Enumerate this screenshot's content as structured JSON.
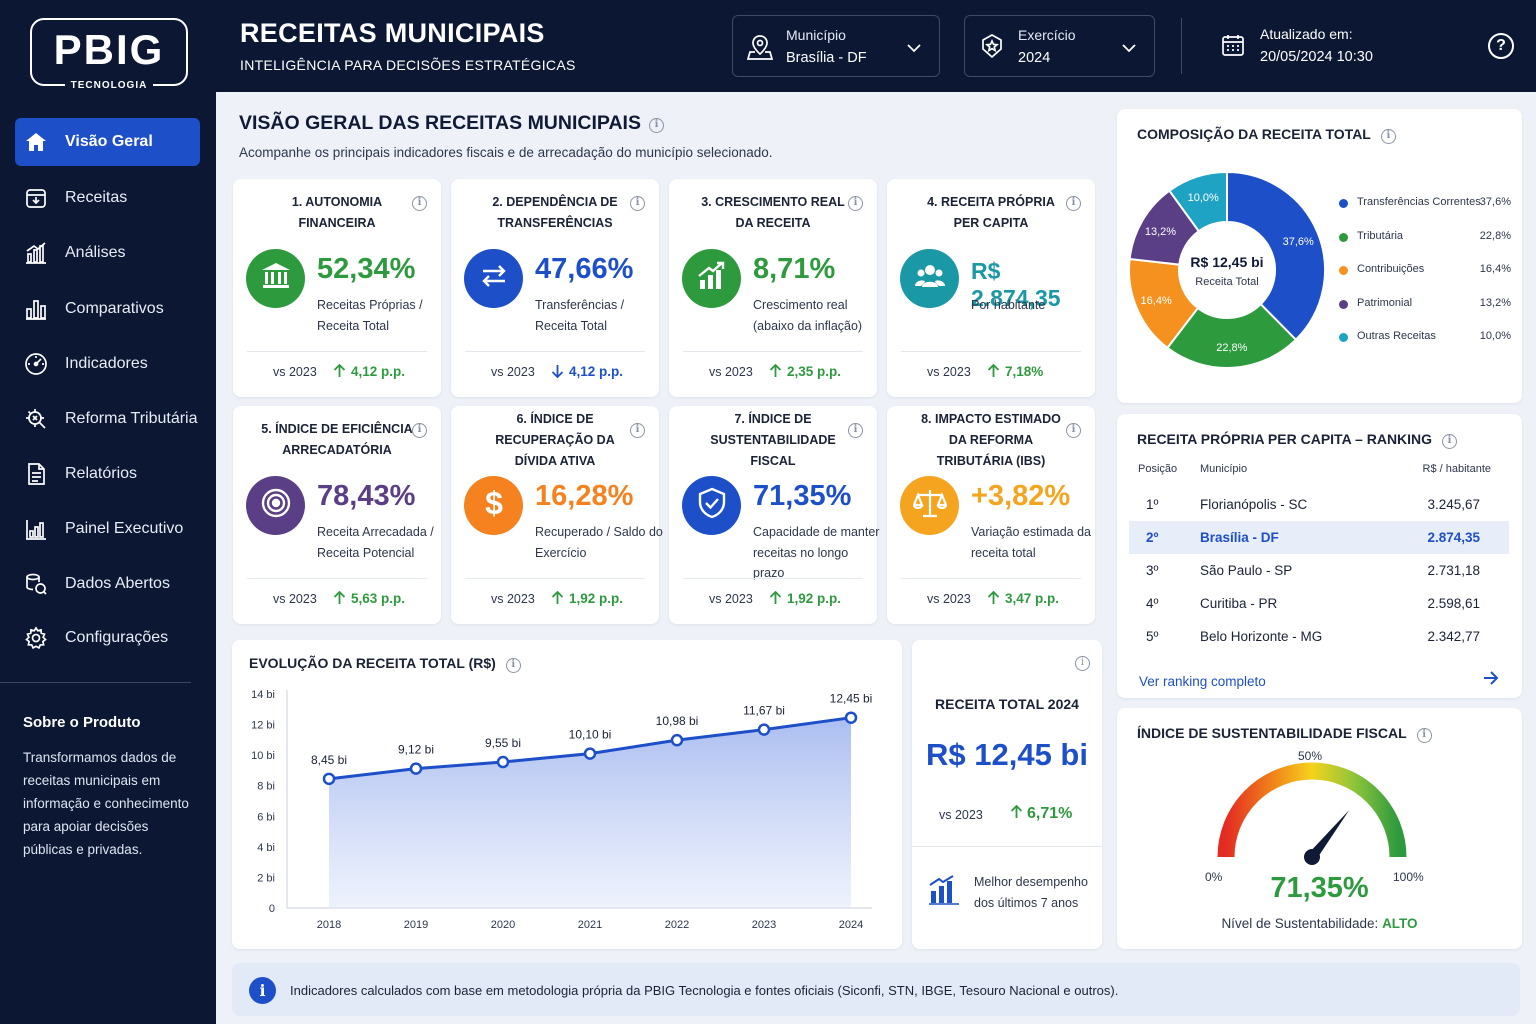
{
  "brand": {
    "name": "PBIG",
    "sub": "TECNOLOGIA"
  },
  "sidebar": {
    "items": [
      {
        "label": "Visão Geral",
        "icon": "home-icon",
        "active": true
      },
      {
        "label": "Receitas",
        "icon": "receipt-icon"
      },
      {
        "label": "Análises",
        "icon": "bar-chart-icon"
      },
      {
        "label": "Comparativos",
        "icon": "compare-bars-icon"
      },
      {
        "label": "Indicadores",
        "icon": "gauge-icon"
      },
      {
        "label": "Reforma Tributária",
        "icon": "tax-reform-icon"
      },
      {
        "label": "Relatórios",
        "icon": "document-icon"
      },
      {
        "label": "Painel Executivo",
        "icon": "dashboard-icon"
      },
      {
        "label": "Dados Abertos",
        "icon": "open-data-icon"
      },
      {
        "label": "Configurações",
        "icon": "gear-icon"
      }
    ],
    "about_title": "Sobre o Produto",
    "about_text": "Transformamos dados de receitas municipais em informação e conhecimento para apoiar decisões públicas e privadas."
  },
  "header": {
    "title": "RECEITAS MUNICIPAIS",
    "subtitle": "INTELIGÊNCIA PARA DECISÕES ESTRATÉGICAS",
    "municipio": {
      "label": "Município",
      "value": "Brasília - DF"
    },
    "exercicio": {
      "label": "Exercício",
      "value": "2024"
    },
    "updated": {
      "label": "Atualizado em:",
      "value": "20/05/2024 10:30"
    },
    "help": "?"
  },
  "overview": {
    "title": "VISÃO GERAL DAS RECEITAS MUNICIPAIS",
    "subtitle": "Acompanhe os principais indicadores fiscais e de arrecadação do município selecionado."
  },
  "kpis": [
    {
      "title": "1. AUTONOMIA FINANCEIRA",
      "value": "52,34%",
      "desc": "Receitas Próprias / Receita Total",
      "vs": "vs 2023",
      "delta": "4,12 p.p.",
      "dir": "up",
      "color": "#2e9a3e",
      "icon": "bank-icon"
    },
    {
      "title": "2. DEPENDÊNCIA DE TRANSFERÊNCIAS",
      "value": "47,66%",
      "desc": "Transferências / Receita Total",
      "vs": "vs 2023",
      "delta": "4,12 p.p.",
      "dir": "down",
      "color": "#1d4fc9",
      "icon": "transfer-arrows-icon"
    },
    {
      "title": "3. CRESCIMENTO REAL DA RECEITA",
      "value": "8,71%",
      "desc": "Crescimento real (abaixo da inflação)",
      "vs": "vs 2023",
      "delta": "2,35 p.p.",
      "dir": "up",
      "color": "#2e9a3e",
      "icon": "growth-chart-icon"
    },
    {
      "title": "4. RECEITA PRÓPRIA PER CAPITA",
      "value": "R$ 2.874,35",
      "desc": "Por habitante",
      "vs": "vs 2023",
      "delta": "7,18%",
      "dir": "up",
      "color": "#1a98a6",
      "icon": "people-icon"
    },
    {
      "title": "5. ÍNDICE DE EFICIÊNCIA ARRECADATÓRIA",
      "value": "78,43%",
      "desc": "Receita Arrecadada / Receita Potencial",
      "vs": "vs 2023",
      "delta": "5,63 p.p.",
      "dir": "up",
      "color": "#5b3f86",
      "icon": "target-icon"
    },
    {
      "title": "6. ÍNDICE DE RECUPERAÇÃO DA DÍVIDA ATIVA",
      "value": "16,28%",
      "desc": "Recuperado / Saldo do Exercício",
      "vs": "vs 2023",
      "delta": "1,92 p.p.",
      "dir": "up",
      "color": "#f5821f",
      "icon": "dollar-icon"
    },
    {
      "title": "7. ÍNDICE DE SUSTENTABILIDADE FISCAL",
      "value": "71,35%",
      "desc": "Capacidade de manter receitas no longo prazo",
      "vs": "vs 2023",
      "delta": "1,92 p.p.",
      "dir": "up",
      "color": "#1d4fc9",
      "icon": "shield-check-icon"
    },
    {
      "title": "8. IMPACTO ESTIMADO DA REFORMA TRIBUTÁRIA (IBS)",
      "value": "+3,82%",
      "desc": "Variação estimada da receita total",
      "vs": "vs 2023",
      "delta": "3,47 p.p.",
      "dir": "up",
      "color": "#f5a41f",
      "icon": "scale-icon"
    }
  ],
  "composition": {
    "title": "COMPOSIÇÃO DA RECEITA TOTAL",
    "center_value": "R$ 12,45 bi",
    "center_label": "Receita Total",
    "slices": [
      {
        "name": "Transferências Correntes",
        "pct": 37.6,
        "label": "37,6%",
        "color": "#1d4fc9"
      },
      {
        "name": "Tributária",
        "pct": 22.8,
        "label": "22,8%",
        "color": "#2e9a3e"
      },
      {
        "name": "Contribuições",
        "pct": 16.4,
        "label": "16,4%",
        "color": "#f5921f"
      },
      {
        "name": "Patrimonial",
        "pct": 13.2,
        "label": "13,2%",
        "color": "#5b3f86"
      },
      {
        "name": "Outras Receitas",
        "pct": 10.0,
        "label": "10,0%",
        "color": "#1fa3c4"
      }
    ]
  },
  "ranking": {
    "title": "RECEITA PRÓPRIA PER CAPITA – RANKING",
    "headers": {
      "pos": "Posição",
      "mun": "Município",
      "val": "R$ / habitante"
    },
    "rows": [
      {
        "pos": "1º",
        "mun": "Florianópolis - SC",
        "val": "3.245,67"
      },
      {
        "pos": "2º",
        "mun": "Brasília - DF",
        "val": "2.874,35",
        "hl": true
      },
      {
        "pos": "3º",
        "mun": "São Paulo - SP",
        "val": "2.731,18"
      },
      {
        "pos": "4º",
        "mun": "Curitiba - PR",
        "val": "2.598,61"
      },
      {
        "pos": "5º",
        "mun": "Belo Horizonte - MG",
        "val": "2.342,77"
      }
    ],
    "link": "Ver ranking completo"
  },
  "evolution": {
    "title": "EVOLUÇÃO DA RECEITA TOTAL  (R$)"
  },
  "chart_data": {
    "type": "area",
    "title": "EVOLUÇÃO DA RECEITA TOTAL  (R$)",
    "x": [
      "2018",
      "2019",
      "2020",
      "2021",
      "2022",
      "2023",
      "2024"
    ],
    "values": [
      8.45,
      9.12,
      9.55,
      10.1,
      10.98,
      11.67,
      12.45
    ],
    "labels": [
      "8,45 bi",
      "9,12 bi",
      "9,55 bi",
      "10,10 bi",
      "10,98 bi",
      "11,67 bi",
      "12,45 bi"
    ],
    "y_ticks": [
      "0",
      "2 bi",
      "4 bi",
      "6 bi",
      "8 bi",
      "10 bi",
      "12 bi",
      "14 bi"
    ],
    "ylim": [
      0,
      14
    ],
    "color": "#1d4fc9"
  },
  "total": {
    "title": "RECEITA TOTAL 2024",
    "value": "R$ 12,45 bi",
    "vs": "vs 2023",
    "delta": "6,71%",
    "note": "Melhor desempenho dos últimos 7 anos"
  },
  "gauge": {
    "title": "ÍNDICE DE SUSTENTABILIDADE FISCAL",
    "value": 71.35,
    "value_label": "71,35%",
    "min_label": "0%",
    "mid_label": "50%",
    "max_label": "100%",
    "level_label": "Nível de Sustentabilidade:",
    "level_value": "ALTO"
  },
  "footer": {
    "text": "Indicadores calculados com base em metodologia própria da PBIG Tecnologia e fontes oficiais (Siconfi, STN, IBGE, Tesouro Nacional e outros)."
  }
}
